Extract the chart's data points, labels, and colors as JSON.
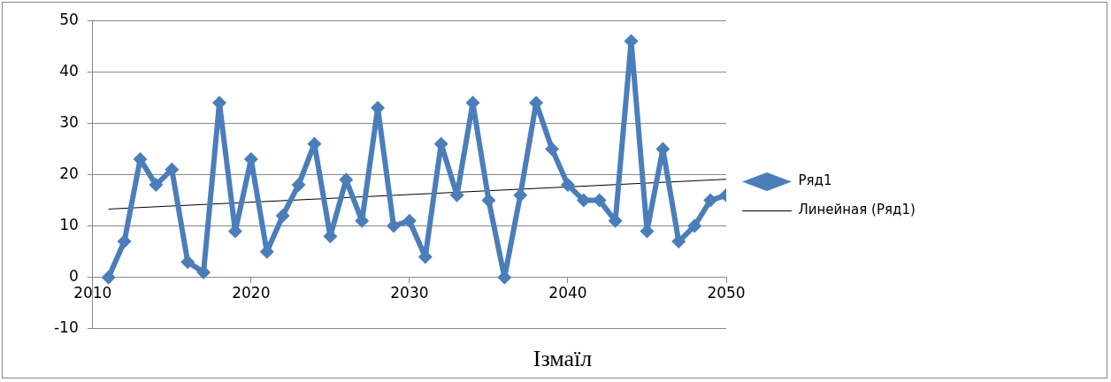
{
  "chart_data": {
    "type": "line",
    "title": "Ізмаїл",
    "xlim": [
      2010,
      2050
    ],
    "xticks": [
      2010,
      2020,
      2030,
      2040,
      2050
    ],
    "ylim": [
      -10,
      50
    ],
    "yticks": [
      -10,
      0,
      10,
      20,
      30,
      40,
      50
    ],
    "grid": "y",
    "legend": "right",
    "line_style": "solid",
    "series": [
      {
        "name": "Ряд1",
        "color": "#4a7ebb",
        "marker": "diamond",
        "x": [
          2011,
          2012,
          2013,
          2014,
          2015,
          2016,
          2017,
          2018,
          2019,
          2020,
          2021,
          2022,
          2023,
          2024,
          2025,
          2026,
          2027,
          2028,
          2029,
          2030,
          2031,
          2032,
          2033,
          2034,
          2035,
          2036,
          2037,
          2038,
          2039,
          2040,
          2041,
          2042,
          2043,
          2044,
          2045,
          2046,
          2047,
          2048,
          2049,
          2050
        ],
        "values": [
          0,
          7,
          23,
          18,
          21,
          3,
          1,
          34,
          9,
          23,
          5,
          12,
          18,
          26,
          8,
          19,
          11,
          33,
          10,
          11,
          4,
          26,
          16,
          34,
          15,
          0,
          16,
          34,
          25,
          18,
          15,
          15,
          11,
          46,
          9,
          25,
          7,
          10,
          15,
          16
        ]
      },
      {
        "name": "Линейная (Ряд1)",
        "type": "line",
        "color": "#000000",
        "marker": "none",
        "x": [
          2011,
          2050
        ],
        "values": [
          13.3,
          19.1
        ]
      }
    ]
  }
}
